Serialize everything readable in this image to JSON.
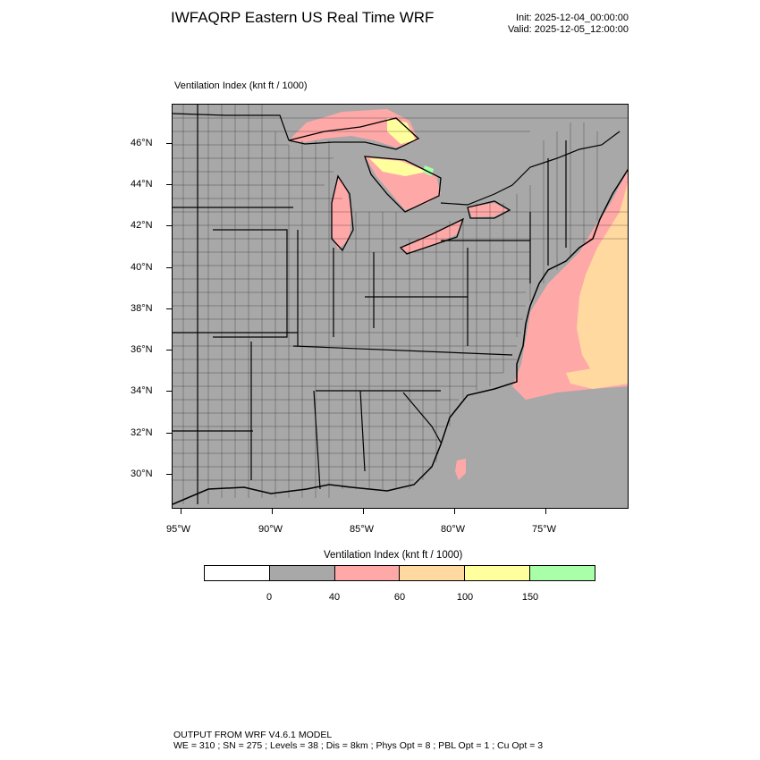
{
  "header": {
    "title": "IWFAQRP Eastern US Real Time WRF",
    "init": "Init: 2025-12-04_00:00:00",
    "valid": "Valid: 2025-12-05_12:00:00"
  },
  "plot": {
    "label": "Ventilation Index   (knt ft / 1000)",
    "lat_labels": [
      "46°N",
      "44°N",
      "42°N",
      "40°N",
      "38°N",
      "36°N",
      "34°N",
      "32°N",
      "30°N"
    ],
    "lon_labels": [
      "95°W",
      "90°W",
      "85°W",
      "80°W",
      "75°W"
    ]
  },
  "colorbar": {
    "title": "Ventilation Index  (knt ft / 1000)",
    "colors": [
      "#ffffff",
      "#a8a8a8",
      "#ffa8a8",
      "#ffd9a0",
      "#ffff9e",
      "#a8ffa8"
    ],
    "labels": [
      "0",
      "40",
      "60",
      "100",
      "150"
    ]
  },
  "footer": {
    "line1": "OUTPUT FROM WRF V4.6.1 MODEL",
    "line2": "WE = 310 ; SN = 275 ; Levels = 38 ; Dis = 8km ; Phys Opt = 8 ; PBL Opt = 1 ; Cu Opt = 3"
  }
}
